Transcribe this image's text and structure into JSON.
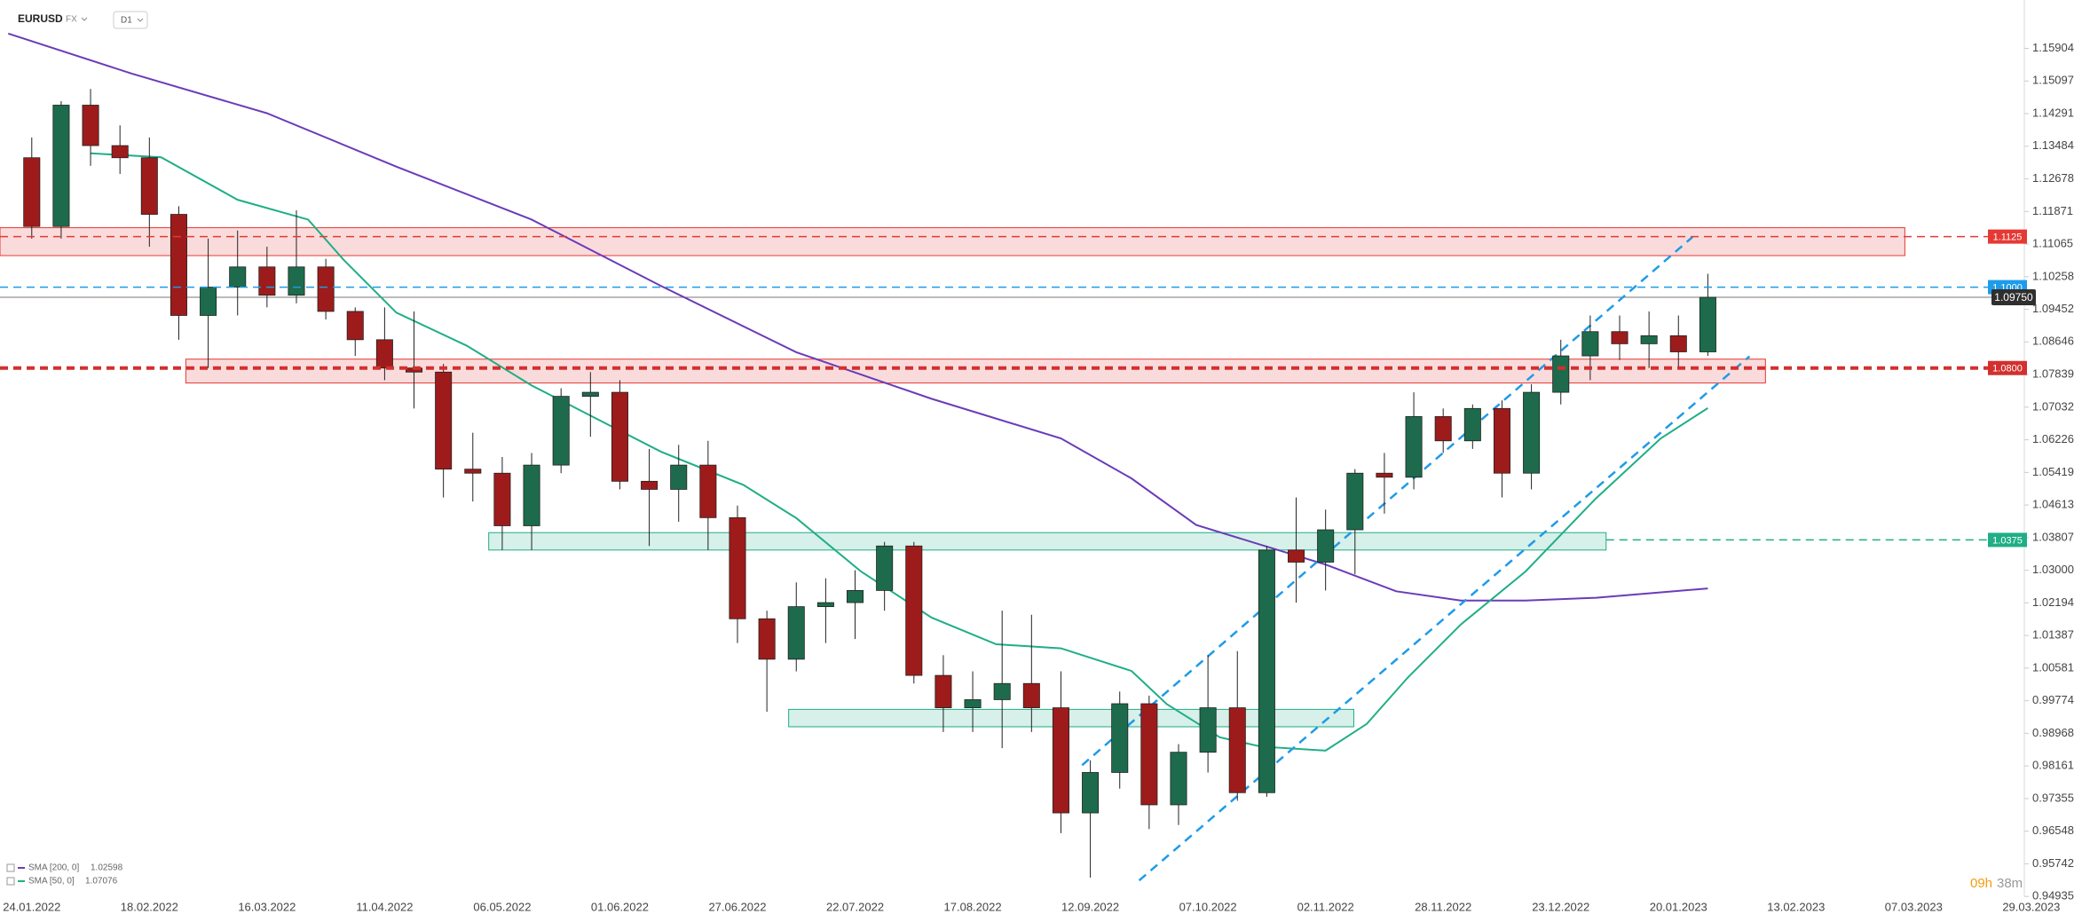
{
  "header": {
    "symbol": "EURUSD",
    "market": "FX",
    "interval": "D1"
  },
  "chart_data": {
    "type": "candlestick",
    "x": [
      0,
      5,
      10,
      15,
      20,
      25,
      30,
      35,
      40,
      45,
      50,
      55,
      60,
      65,
      70,
      75,
      80,
      85,
      90,
      95,
      100,
      105,
      110,
      115,
      120,
      125,
      130,
      135,
      140,
      145,
      150,
      155,
      160,
      165,
      170,
      175,
      180,
      185,
      190,
      195,
      200,
      205,
      210,
      215,
      220,
      225,
      230,
      235,
      240,
      245,
      250,
      255,
      260,
      265,
      270,
      275,
      280,
      285
    ],
    "open": [
      1.132,
      1.115,
      1.145,
      1.135,
      1.132,
      1.118,
      1.093,
      1.1,
      1.105,
      1.098,
      1.105,
      1.094,
      1.087,
      1.08,
      1.079,
      1.055,
      1.054,
      1.041,
      1.056,
      1.073,
      1.074,
      1.052,
      1.05,
      1.056,
      1.043,
      1.018,
      1.008,
      1.021,
      1.022,
      1.025,
      1.036,
      1.004,
      0.996,
      0.998,
      1.002,
      0.996,
      0.97,
      0.98,
      0.997,
      0.972,
      0.985,
      0.996,
      0.975,
      1.035,
      1.032,
      1.04,
      1.054,
      1.053,
      1.068,
      1.062,
      1.07,
      1.054,
      1.074,
      1.083,
      1.089,
      1.086,
      1.088,
      1.084
    ],
    "high": [
      1.137,
      1.146,
      1.149,
      1.14,
      1.137,
      1.12,
      1.112,
      1.114,
      1.11,
      1.119,
      1.107,
      1.095,
      1.095,
      1.094,
      1.081,
      1.064,
      1.058,
      1.059,
      1.075,
      1.079,
      1.077,
      1.06,
      1.061,
      1.062,
      1.046,
      1.02,
      1.027,
      1.028,
      1.03,
      1.037,
      1.037,
      1.009,
      1.005,
      1.02,
      1.019,
      1.005,
      0.983,
      1.0,
      0.999,
      0.987,
      1.009,
      1.01,
      1.036,
      1.048,
      1.045,
      1.055,
      1.059,
      1.074,
      1.07,
      1.071,
      1.072,
      1.076,
      1.087,
      1.093,
      1.093,
      1.094,
      1.093,
      1.1033
    ],
    "low": [
      1.112,
      1.112,
      1.13,
      1.128,
      1.11,
      1.087,
      1.08,
      1.093,
      1.095,
      1.096,
      1.092,
      1.083,
      1.077,
      1.07,
      1.048,
      1.047,
      1.035,
      1.035,
      1.054,
      1.063,
      1.05,
      1.036,
      1.042,
      1.035,
      1.012,
      0.995,
      1.005,
      1.012,
      1.013,
      1.02,
      1.002,
      0.99,
      0.99,
      0.986,
      0.99,
      0.965,
      0.954,
      0.976,
      0.966,
      0.967,
      0.98,
      0.973,
      0.974,
      1.022,
      1.025,
      1.029,
      1.044,
      1.05,
      1.059,
      1.06,
      1.048,
      1.05,
      1.071,
      1.077,
      1.082,
      1.08,
      1.08,
      1.083
    ],
    "close": [
      1.115,
      1.145,
      1.135,
      1.132,
      1.118,
      1.093,
      1.1,
      1.105,
      1.098,
      1.105,
      1.094,
      1.087,
      1.08,
      1.079,
      1.055,
      1.054,
      1.041,
      1.056,
      1.073,
      1.074,
      1.052,
      1.05,
      1.056,
      1.043,
      1.018,
      1.008,
      1.021,
      1.022,
      1.025,
      1.036,
      1.004,
      0.996,
      0.998,
      1.002,
      0.996,
      0.97,
      0.98,
      0.997,
      0.972,
      0.985,
      0.996,
      0.975,
      1.035,
      1.032,
      1.04,
      1.054,
      1.053,
      1.068,
      1.062,
      1.07,
      1.054,
      1.074,
      1.083,
      1.089,
      1.086,
      1.088,
      1.084,
      1.0975
    ],
    "up_color": "#1d6b4c",
    "down_color": "#9e1b1b",
    "series": [
      {
        "name": "SMA [200, 0]",
        "color": "#6a3cb8",
        "last_value": 1.02598,
        "x": [
          -4,
          17,
          40,
          62,
          85,
          107,
          130,
          153,
          175,
          187,
          198,
          209,
          220,
          232,
          243,
          254,
          266,
          285
        ],
        "values": [
          1.1627,
          1.1528,
          1.143,
          1.1298,
          1.1167,
          1.1003,
          1.0839,
          1.0724,
          1.0626,
          1.0527,
          1.0412,
          1.0363,
          1.0314,
          1.0248,
          1.0225,
          1.0225,
          1.0232,
          1.0255
        ]
      },
      {
        "name": "SMA [50, 0]",
        "color": "#1fae86",
        "last_value": 1.07076,
        "x": [
          10,
          22,
          35,
          47,
          53,
          62,
          74,
          85,
          96,
          107,
          121,
          130,
          141,
          153,
          164,
          175,
          187,
          193,
          202,
          209,
          220,
          227,
          234,
          243,
          254,
          266,
          277,
          285
        ],
        "values": [
          1.1331,
          1.1321,
          1.1216,
          1.1167,
          1.1068,
          1.0937,
          1.0855,
          1.0757,
          1.0675,
          1.0593,
          1.0511,
          1.0429,
          1.0297,
          1.0183,
          1.0117,
          1.0107,
          1.0051,
          0.9969,
          0.9887,
          0.9864,
          0.9854,
          0.992,
          1.0035,
          1.0166,
          1.0297,
          1.0478,
          1.0626,
          1.0701
        ]
      }
    ],
    "zones": [
      {
        "ylim": [
          1.1078,
          1.1147
        ],
        "xlim": [
          -5.4,
          318.5
        ],
        "color": "#e53935"
      },
      {
        "ylim": [
          1.0763,
          1.0822
        ],
        "xlim": [
          26.2,
          294.8
        ],
        "color": "#e53935"
      },
      {
        "ylim": [
          1.035,
          1.0393
        ],
        "xlim": [
          77.7,
          267.7
        ],
        "color": "#1fae86"
      },
      {
        "ylim": [
          0.9913,
          0.9956
        ],
        "xlim": [
          128.7,
          224.8
        ],
        "color": "#1fae86"
      }
    ],
    "channel": [
      {
        "x": [
          178.6,
          282.4
        ],
        "values": [
          0.9818,
          1.1124
        ],
        "color": "#1e9be9"
      },
      {
        "x": [
          188.3,
          292.1
        ],
        "values": [
          0.9533,
          1.0829
        ],
        "color": "#1e9be9"
      }
    ],
    "levels": [
      {
        "value": 1.1125,
        "label": "1.1125",
        "color": "#e53935",
        "width": 1.5,
        "start": -5.4
      },
      {
        "value": 1.1,
        "label": "1.1000",
        "color": "#1e9be9",
        "width": 1.5,
        "start": -5.4
      },
      {
        "value": 1.08,
        "label": "1.0800",
        "color": "#d32f2f",
        "width": 4,
        "start": -5.4
      },
      {
        "value": 1.0375,
        "label": "1.0375",
        "color": "#1fae86",
        "width": 1.5,
        "start": 267.7
      }
    ],
    "current": {
      "value": 1.0975,
      "label": "1.09750",
      "color": "#2f2f2f"
    },
    "xlim": [
      -5.4,
      345
    ],
    "xticks": [
      {
        "value": 0,
        "label": "24.01.2022"
      },
      {
        "value": 20,
        "label": "18.02.2022"
      },
      {
        "value": 40,
        "label": "16.03.2022"
      },
      {
        "value": 60,
        "label": "11.04.2022"
      },
      {
        "value": 80,
        "label": "06.05.2022"
      },
      {
        "value": 100,
        "label": "01.06.2022"
      },
      {
        "value": 120,
        "label": "27.06.2022"
      },
      {
        "value": 140,
        "label": "22.07.2022"
      },
      {
        "value": 160,
        "label": "17.08.2022"
      },
      {
        "value": 180,
        "label": "12.09.2022"
      },
      {
        "value": 200,
        "label": "07.10.2022"
      },
      {
        "value": 220,
        "label": "02.11.2022"
      },
      {
        "value": 240,
        "label": "28.11.2022"
      },
      {
        "value": 260,
        "label": "23.12.2022"
      },
      {
        "value": 280,
        "label": "20.01.2023"
      },
      {
        "value": 300,
        "label": "13.02.2023"
      },
      {
        "value": 320,
        "label": "07.03.2023"
      },
      {
        "value": 340,
        "label": "29.03.2023"
      }
    ],
    "ylim": [
      0.945,
      1.171
    ],
    "yticks": [
      1.15904,
      1.15097,
      1.14291,
      1.13484,
      1.12678,
      1.11871,
      1.11065,
      1.10258,
      1.09452,
      1.08646,
      1.07839,
      1.07032,
      1.06226,
      1.05419,
      1.04613,
      1.03807,
      {
        "value": 1.03,
        "label": "1.03000"
      },
      1.02194,
      1.01387,
      1.00581,
      0.99774,
      0.98968,
      0.98161,
      0.97355,
      0.96548,
      0.95742,
      0.94935
    ],
    "timer": {
      "hours": "09h",
      "minutes": "38m"
    }
  }
}
